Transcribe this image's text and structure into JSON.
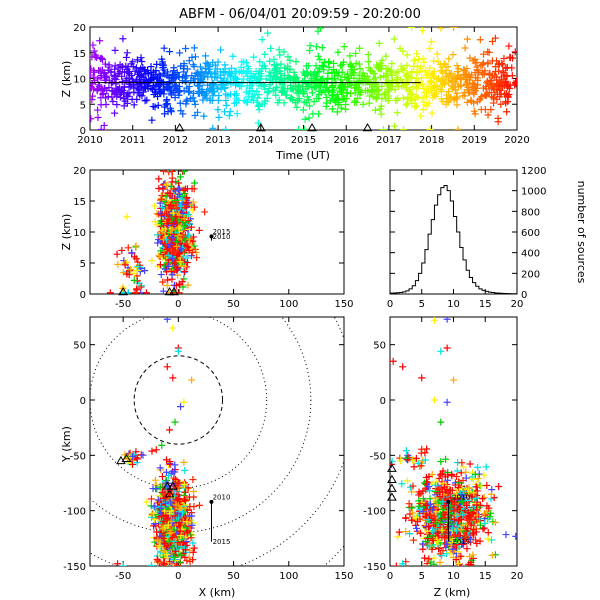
{
  "figure": {
    "title": "ABFM - 06/04/01 20:09:59 - 20:20:00"
  },
  "chart_data": [
    {
      "id": "timeseries",
      "type": "scatter",
      "xlabel": "Time (UT)",
      "ylabel": "Z (km)",
      "xlim": [
        2010,
        2020
      ],
      "ylim": [
        0,
        20
      ],
      "x_ticks": [
        "2010",
        "2011",
        "2012",
        "2013",
        "2014",
        "2015",
        "2016",
        "2017",
        "2018",
        "2019",
        "2020"
      ],
      "y_ticks": [
        "0",
        "5",
        "10",
        "15",
        "20"
      ],
      "reference_line": {
        "x_start": 2010,
        "x_end": 2017.75,
        "y": 9.2
      },
      "station_markers_x": [
        2012.1,
        2014,
        2015.2,
        2016.5
      ],
      "color_scale": "rainbow by time (purple → red)",
      "density": [
        {
          "x_range": [
            2010,
            2020
          ],
          "z_mean": 9.2,
          "z_spread": 2.5
        }
      ]
    },
    {
      "id": "xz",
      "type": "scatter",
      "xlabel": "",
      "ylabel": "Z (km)",
      "xlim": [
        -80,
        150
      ],
      "ylim": [
        0,
        20
      ],
      "x_ticks": [
        "-50",
        "0",
        "50",
        "100",
        "150"
      ],
      "y_ticks": [
        "0",
        "5",
        "10",
        "15",
        "20"
      ],
      "annotations": [
        "2015",
        "2010"
      ],
      "clusters": [
        {
          "x_center": -3,
          "z_center": 10,
          "x_spread": 7,
          "z_spread": 4
        },
        {
          "x_center": -48,
          "z_center": 3.5,
          "x_spread": 4,
          "z_spread": 2.5
        },
        {
          "x_center": -36,
          "z_center": 3,
          "x_spread": 3,
          "z_spread": 2
        }
      ]
    },
    {
      "id": "histogram",
      "type": "bar",
      "ylabel": "number of sources",
      "xlim": [
        0,
        20
      ],
      "ylim": [
        0,
        1200
      ],
      "x_ticks": [
        "0",
        "5",
        "10",
        "15",
        "20"
      ],
      "y_ticks": [
        "0",
        "200",
        "400",
        "600",
        "800",
        "1000",
        "1200"
      ],
      "bin_centers": [
        0.25,
        0.75,
        1.25,
        1.75,
        2.25,
        2.75,
        3.25,
        3.75,
        4.25,
        4.75,
        5.25,
        5.75,
        6.25,
        6.75,
        7.25,
        7.75,
        8.25,
        8.75,
        9.25,
        9.75,
        10.25,
        10.75,
        11.25,
        11.75,
        12.25,
        12.75,
        13.25,
        13.75,
        14.25,
        14.75,
        15.25,
        15.75,
        16.25,
        16.75,
        17.25,
        17.75,
        18.25,
        18.75,
        19.25,
        19.75
      ],
      "values": [
        8,
        10,
        12,
        15,
        20,
        30,
        50,
        80,
        130,
        200,
        300,
        430,
        580,
        720,
        860,
        960,
        1030,
        1050,
        1000,
        900,
        750,
        600,
        450,
        330,
        230,
        160,
        110,
        75,
        50,
        35,
        25,
        18,
        14,
        10,
        8,
        6,
        5,
        4,
        3,
        2
      ]
    },
    {
      "id": "xy",
      "type": "scatter",
      "xlabel": "X (km)",
      "ylabel": "Y (km)",
      "xlim": [
        -80,
        150
      ],
      "ylim": [
        -150,
        75
      ],
      "x_ticks": [
        "-50",
        "0",
        "50",
        "100",
        "150"
      ],
      "y_ticks": [
        "-150",
        "-100",
        "-50",
        "0",
        "50"
      ],
      "range_rings_km": [
        40,
        80,
        120,
        160,
        200
      ],
      "annotations": [
        "2010",
        "2015"
      ],
      "clusters": [
        {
          "x_center": -5,
          "y_center": -110,
          "x_spread": 8,
          "y_spread": 20
        },
        {
          "x_center": -42,
          "y_center": -52,
          "x_spread": 4,
          "y_spread": 3
        }
      ]
    },
    {
      "id": "zy",
      "type": "scatter",
      "xlabel": "Z (km)",
      "ylabel": "",
      "xlim": [
        0,
        20
      ],
      "ylim": [
        -150,
        75
      ],
      "x_ticks": [
        "0",
        "5",
        "10",
        "15",
        "20"
      ],
      "y_ticks": [
        "-150",
        "-100",
        "-50",
        "0",
        "50"
      ],
      "annotations": [
        "2010",
        "2015"
      ],
      "clusters": [
        {
          "z_center": 9.5,
          "y_center": -105,
          "z_spread": 3,
          "y_spread": 20
        },
        {
          "z_center": 3,
          "y_center": -55,
          "z_spread": 1.5,
          "y_spread": 5
        }
      ]
    }
  ]
}
